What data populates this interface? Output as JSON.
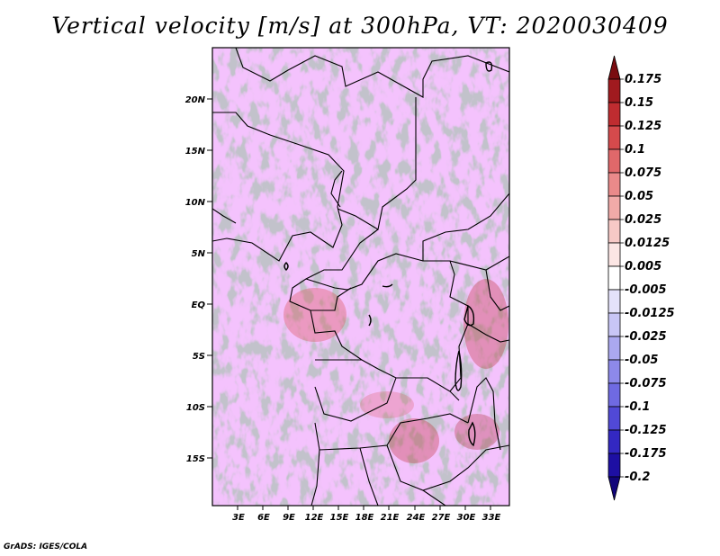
{
  "title": "Vertical velocity [m/s] at 300hPa, VT: 2020030409",
  "credit": "GrADS: IGES/COLA",
  "map": {
    "lat_labels": [
      "20N",
      "15N",
      "10N",
      "5N",
      "EQ",
      "5S",
      "10S",
      "15S"
    ],
    "lon_labels": [
      "3E",
      "6E",
      "9E",
      "12E",
      "15E",
      "18E",
      "21E",
      "24E",
      "27E",
      "30E",
      "33E"
    ]
  },
  "colorbar": {
    "labels": [
      "0.175",
      "0.15",
      "0.125",
      "0.1",
      "0.075",
      "0.05",
      "0.025",
      "0.0125",
      "0.005",
      "-0.005",
      "-0.0125",
      "-0.025",
      "-0.05",
      "-0.075",
      "-0.1",
      "-0.125",
      "-0.175",
      "-0.2"
    ],
    "colors": [
      "#7a0c10",
      "#a01a1f",
      "#bf2c30",
      "#d54a4c",
      "#e0686a",
      "#ea8a8a",
      "#f1aaa8",
      "#f7c9c6",
      "#fce6e4",
      "#ffffff",
      "#e4e2fb",
      "#c8c6f6",
      "#aba8f0",
      "#8d89ea",
      "#6f6ae2",
      "#5149d6",
      "#3328c2",
      "#1d0fa3",
      "#11057a"
    ]
  }
}
